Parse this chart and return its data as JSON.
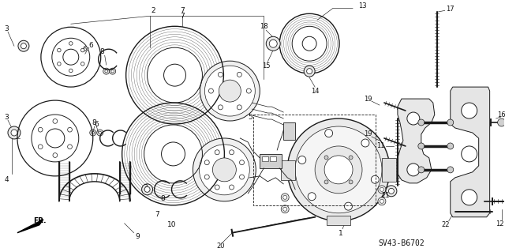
{
  "bg_color": "#ffffff",
  "diagram_code": "SV43-B6702",
  "line_color": "#1a1a1a",
  "text_color": "#111111",
  "fig_w": 6.4,
  "fig_h": 3.19,
  "dpi": 100
}
